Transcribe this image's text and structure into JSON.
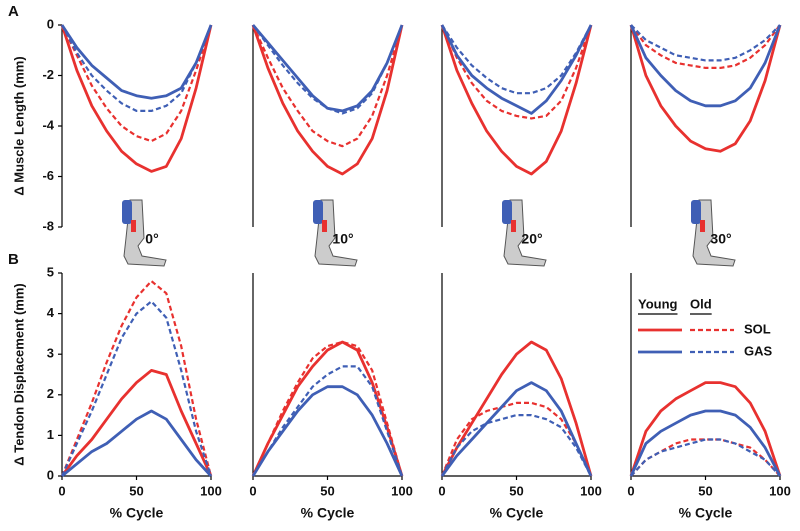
{
  "chart_data": [
    {
      "type": "line",
      "panel_label": "A",
      "ylabel": "Δ Muscle Length (mm)",
      "annotation": "0°",
      "x": [
        0,
        10,
        20,
        30,
        40,
        50,
        60,
        70,
        80,
        90,
        100
      ],
      "xlim": [
        0,
        100
      ],
      "ylim": [
        -8,
        0
      ],
      "yticks": [
        0,
        -2,
        -4,
        -6,
        -8
      ],
      "series": [
        {
          "color": "#e8312f",
          "dash": "solid",
          "values": [
            0,
            -1.8,
            -3.2,
            -4.2,
            -5.0,
            -5.5,
            -5.8,
            -5.6,
            -4.5,
            -2.5,
            0
          ]
        },
        {
          "color": "#e8312f",
          "dash": "dashed",
          "values": [
            0,
            -1.2,
            -2.4,
            -3.3,
            -4.0,
            -4.4,
            -4.6,
            -4.3,
            -3.4,
            -1.8,
            0
          ]
        },
        {
          "color": "#3f5fb5",
          "dash": "solid",
          "values": [
            0,
            -0.9,
            -1.6,
            -2.1,
            -2.6,
            -2.8,
            -2.9,
            -2.8,
            -2.5,
            -1.5,
            0
          ]
        },
        {
          "color": "#3f5fb5",
          "dash": "dashed",
          "values": [
            0,
            -1.1,
            -2.0,
            -2.6,
            -3.1,
            -3.4,
            -3.4,
            -3.2,
            -2.7,
            -1.5,
            0
          ]
        }
      ]
    },
    {
      "type": "line",
      "annotation": "10°",
      "x": [
        0,
        10,
        20,
        30,
        40,
        50,
        60,
        70,
        80,
        90,
        100
      ],
      "xlim": [
        0,
        100
      ],
      "ylim": [
        -8,
        0
      ],
      "series": [
        {
          "color": "#e8312f",
          "dash": "solid",
          "values": [
            0,
            -1.7,
            -3.1,
            -4.2,
            -5.0,
            -5.6,
            -5.9,
            -5.5,
            -4.5,
            -2.6,
            0
          ]
        },
        {
          "color": "#e8312f",
          "dash": "dashed",
          "values": [
            0,
            -1.3,
            -2.5,
            -3.4,
            -4.2,
            -4.6,
            -4.8,
            -4.5,
            -3.6,
            -2.0,
            0
          ]
        },
        {
          "color": "#3f5fb5",
          "dash": "solid",
          "values": [
            0,
            -0.7,
            -1.4,
            -2.1,
            -2.8,
            -3.3,
            -3.4,
            -3.2,
            -2.6,
            -1.5,
            0
          ]
        },
        {
          "color": "#3f5fb5",
          "dash": "dashed",
          "values": [
            0,
            -0.8,
            -1.6,
            -2.3,
            -2.9,
            -3.3,
            -3.5,
            -3.3,
            -2.7,
            -1.5,
            0
          ]
        }
      ]
    },
    {
      "type": "line",
      "annotation": "20°",
      "x": [
        0,
        10,
        20,
        30,
        40,
        50,
        60,
        70,
        80,
        90,
        100
      ],
      "xlim": [
        0,
        100
      ],
      "ylim": [
        -8,
        0
      ],
      "series": [
        {
          "color": "#e8312f",
          "dash": "solid",
          "values": [
            0,
            -1.8,
            -3.1,
            -4.2,
            -5.0,
            -5.6,
            -5.9,
            -5.4,
            -4.2,
            -2.3,
            0
          ]
        },
        {
          "color": "#e8312f",
          "dash": "dashed",
          "values": [
            0,
            -1.3,
            -2.3,
            -3.0,
            -3.4,
            -3.6,
            -3.7,
            -3.6,
            -3.0,
            -1.7,
            0
          ]
        },
        {
          "color": "#3f5fb5",
          "dash": "solid",
          "values": [
            0,
            -1.2,
            -2.0,
            -2.5,
            -2.9,
            -3.2,
            -3.5,
            -3.0,
            -2.2,
            -1.2,
            0
          ]
        },
        {
          "color": "#3f5fb5",
          "dash": "dashed",
          "values": [
            0,
            -0.9,
            -1.6,
            -2.1,
            -2.5,
            -2.7,
            -2.7,
            -2.5,
            -2.0,
            -1.1,
            0
          ]
        }
      ]
    },
    {
      "type": "line",
      "annotation": "30°",
      "x": [
        0,
        10,
        20,
        30,
        40,
        50,
        60,
        70,
        80,
        90,
        100
      ],
      "xlim": [
        0,
        100
      ],
      "ylim": [
        -8,
        0
      ],
      "series": [
        {
          "color": "#e8312f",
          "dash": "solid",
          "values": [
            0,
            -2.0,
            -3.2,
            -4.0,
            -4.6,
            -4.9,
            -5.0,
            -4.7,
            -3.8,
            -2.2,
            0
          ]
        },
        {
          "color": "#e8312f",
          "dash": "dashed",
          "values": [
            0,
            -0.8,
            -1.2,
            -1.5,
            -1.6,
            -1.7,
            -1.7,
            -1.6,
            -1.3,
            -0.8,
            0
          ]
        },
        {
          "color": "#3f5fb5",
          "dash": "solid",
          "values": [
            0,
            -1.3,
            -2.0,
            -2.6,
            -3.0,
            -3.2,
            -3.2,
            -3.0,
            -2.5,
            -1.5,
            0
          ]
        },
        {
          "color": "#3f5fb5",
          "dash": "dashed",
          "values": [
            0,
            -0.6,
            -0.9,
            -1.2,
            -1.3,
            -1.4,
            -1.4,
            -1.3,
            -1.0,
            -0.6,
            0
          ]
        }
      ]
    },
    {
      "type": "line",
      "panel_label": "B",
      "ylabel": "Δ Tendon Displacement (mm)",
      "xlabel": "% Cycle",
      "x": [
        0,
        10,
        20,
        30,
        40,
        50,
        60,
        70,
        80,
        90,
        100
      ],
      "xlim": [
        0,
        100
      ],
      "xticks": [
        0,
        50,
        100
      ],
      "ylim": [
        0,
        5
      ],
      "yticks": [
        0,
        1,
        2,
        3,
        4,
        5
      ],
      "series": [
        {
          "color": "#e8312f",
          "dash": "solid",
          "values": [
            0,
            0.5,
            0.9,
            1.4,
            1.9,
            2.3,
            2.6,
            2.5,
            1.6,
            0.8,
            0
          ]
        },
        {
          "color": "#e8312f",
          "dash": "dashed",
          "values": [
            0,
            0.9,
            1.8,
            2.8,
            3.7,
            4.4,
            4.8,
            4.5,
            3.2,
            1.4,
            0
          ]
        },
        {
          "color": "#3f5fb5",
          "dash": "solid",
          "values": [
            0,
            0.3,
            0.6,
            0.8,
            1.1,
            1.4,
            1.6,
            1.4,
            0.9,
            0.4,
            0
          ]
        },
        {
          "color": "#3f5fb5",
          "dash": "dashed",
          "values": [
            0,
            0.8,
            1.6,
            2.5,
            3.4,
            4.0,
            4.3,
            3.9,
            2.6,
            1.1,
            0
          ]
        }
      ]
    },
    {
      "type": "line",
      "xlabel": "% Cycle",
      "x": [
        0,
        10,
        20,
        30,
        40,
        50,
        60,
        70,
        80,
        90,
        100
      ],
      "xlim": [
        0,
        100
      ],
      "xticks": [
        0,
        50,
        100
      ],
      "ylim": [
        0,
        5
      ],
      "series": [
        {
          "color": "#e8312f",
          "dash": "solid",
          "values": [
            0,
            0.8,
            1.5,
            2.2,
            2.7,
            3.1,
            3.3,
            3.1,
            2.3,
            1.2,
            0
          ]
        },
        {
          "color": "#e8312f",
          "dash": "dashed",
          "values": [
            0,
            0.8,
            1.6,
            2.3,
            2.9,
            3.2,
            3.3,
            3.2,
            2.6,
            1.3,
            0
          ]
        },
        {
          "color": "#3f5fb5",
          "dash": "solid",
          "values": [
            0,
            0.6,
            1.1,
            1.6,
            2.0,
            2.2,
            2.2,
            2.0,
            1.5,
            0.8,
            0
          ]
        },
        {
          "color": "#3f5fb5",
          "dash": "dashed",
          "values": [
            0,
            0.6,
            1.2,
            1.7,
            2.2,
            2.5,
            2.7,
            2.7,
            2.2,
            1.1,
            0
          ]
        }
      ]
    },
    {
      "type": "line",
      "xlabel": "% Cycle",
      "x": [
        0,
        10,
        20,
        30,
        40,
        50,
        60,
        70,
        80,
        90,
        100
      ],
      "xlim": [
        0,
        100
      ],
      "xticks": [
        0,
        50,
        100
      ],
      "ylim": [
        0,
        5
      ],
      "series": [
        {
          "color": "#e8312f",
          "dash": "solid",
          "values": [
            0,
            0.7,
            1.3,
            1.9,
            2.5,
            3.0,
            3.3,
            3.1,
            2.4,
            1.3,
            0
          ]
        },
        {
          "color": "#e8312f",
          "dash": "dashed",
          "values": [
            0,
            0.9,
            1.4,
            1.6,
            1.7,
            1.8,
            1.8,
            1.7,
            1.4,
            0.8,
            0
          ]
        },
        {
          "color": "#3f5fb5",
          "dash": "solid",
          "values": [
            0,
            0.5,
            0.9,
            1.3,
            1.7,
            2.1,
            2.3,
            2.1,
            1.6,
            0.8,
            0
          ]
        },
        {
          "color": "#3f5fb5",
          "dash": "dashed",
          "values": [
            0,
            0.7,
            1.1,
            1.3,
            1.4,
            1.5,
            1.5,
            1.4,
            1.2,
            0.7,
            0
          ]
        }
      ]
    },
    {
      "type": "line",
      "xlabel": "% Cycle",
      "x": [
        0,
        10,
        20,
        30,
        40,
        50,
        60,
        70,
        80,
        90,
        100
      ],
      "xlim": [
        0,
        100
      ],
      "xticks": [
        0,
        50,
        100
      ],
      "ylim": [
        0,
        5
      ],
      "legend": {
        "columns": [
          "Young",
          "Old"
        ],
        "rows": [
          {
            "name": "SOL",
            "color": "#e8312f"
          },
          {
            "name": "GAS",
            "color": "#3f5fb5"
          }
        ]
      },
      "series": [
        {
          "color": "#e8312f",
          "dash": "solid",
          "values": [
            0,
            1.1,
            1.6,
            1.9,
            2.1,
            2.3,
            2.3,
            2.2,
            1.8,
            1.1,
            0
          ]
        },
        {
          "color": "#e8312f",
          "dash": "dashed",
          "values": [
            0,
            0.4,
            0.6,
            0.8,
            0.9,
            0.9,
            0.9,
            0.8,
            0.7,
            0.4,
            0
          ]
        },
        {
          "color": "#3f5fb5",
          "dash": "solid",
          "values": [
            0,
            0.8,
            1.1,
            1.3,
            1.5,
            1.6,
            1.6,
            1.5,
            1.2,
            0.7,
            0
          ]
        },
        {
          "color": "#3f5fb5",
          "dash": "dashed",
          "values": [
            0,
            0.4,
            0.6,
            0.7,
            0.8,
            0.9,
            0.9,
            0.8,
            0.6,
            0.4,
            0
          ]
        }
      ]
    }
  ]
}
